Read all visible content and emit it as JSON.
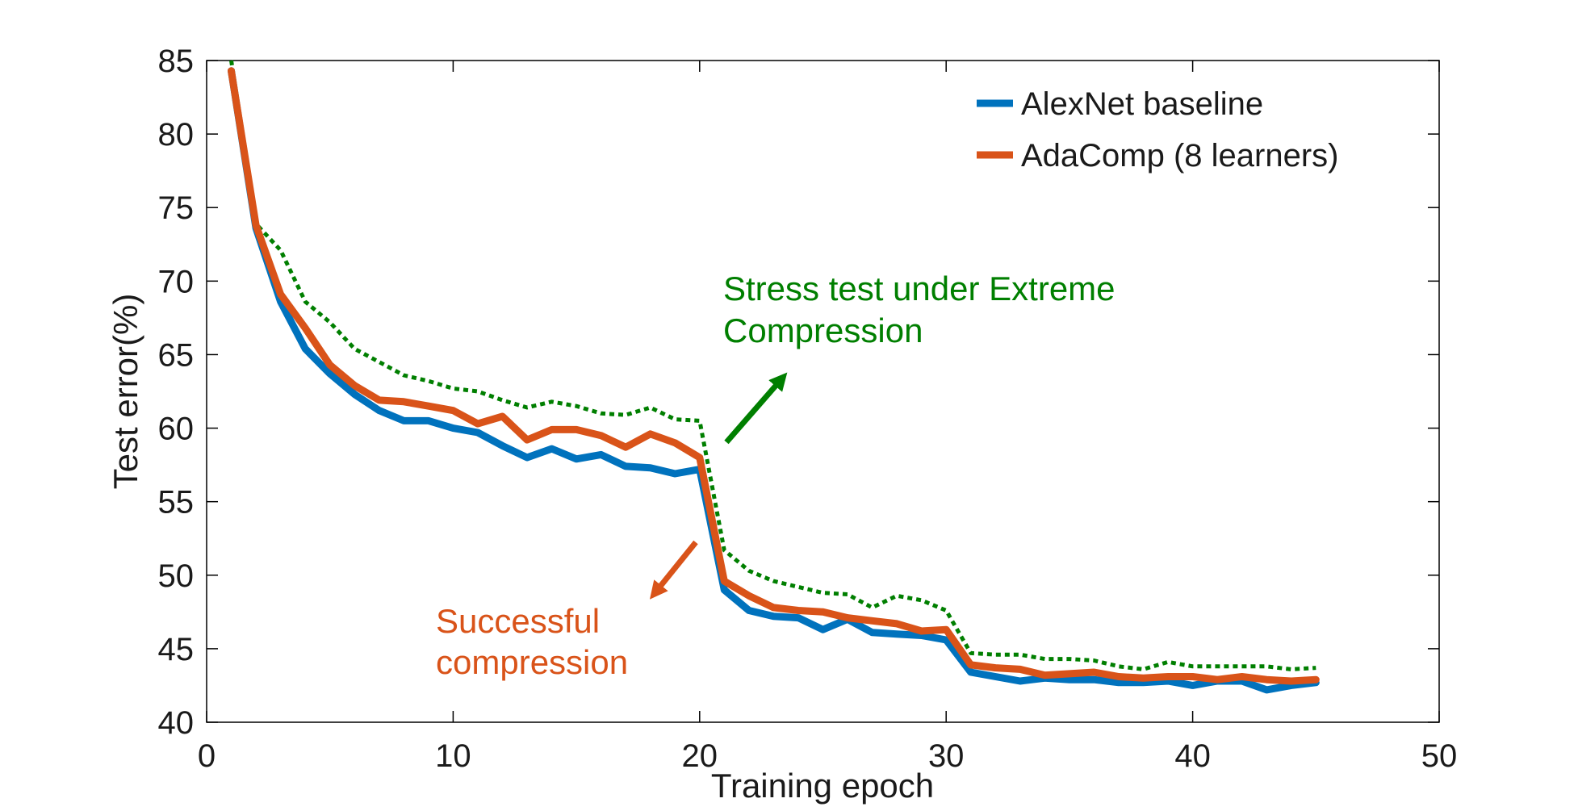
{
  "chart_data": {
    "type": "line",
    "title": "",
    "xlabel": "Training epoch",
    "ylabel": "Test error(%)",
    "xlim": [
      0,
      50
    ],
    "ylim": [
      40,
      85
    ],
    "xticks": [
      0,
      10,
      20,
      30,
      40,
      50
    ],
    "yticks": [
      40,
      45,
      50,
      55,
      60,
      65,
      70,
      75,
      80,
      85
    ],
    "grid": false,
    "legend_position": "top-right",
    "colors": {
      "baseline": "#0072bd",
      "adacomp": "#d95319",
      "stress": "#007f00",
      "axis": "#000000"
    },
    "x": [
      1,
      2,
      3,
      4,
      5,
      6,
      7,
      8,
      9,
      10,
      11,
      12,
      13,
      14,
      15,
      16,
      17,
      18,
      19,
      20,
      21,
      22,
      23,
      24,
      25,
      26,
      27,
      28,
      29,
      30,
      31,
      32,
      33,
      34,
      35,
      36,
      37,
      38,
      39,
      40,
      41,
      42,
      43,
      44,
      45
    ],
    "series": [
      {
        "name": "AlexNet baseline",
        "in_legend": true,
        "style": "solid",
        "color": "#0072bd",
        "values": [
          84.3,
          73.6,
          68.6,
          65.4,
          63.7,
          62.3,
          61.2,
          60.5,
          60.5,
          60.0,
          59.7,
          58.8,
          58.0,
          58.6,
          57.9,
          58.2,
          57.4,
          57.3,
          56.9,
          57.2,
          49.0,
          47.6,
          47.2,
          47.1,
          46.3,
          47.0,
          46.1,
          46.0,
          45.9,
          45.6,
          43.4,
          43.1,
          42.8,
          43.0,
          42.9,
          42.9,
          42.7,
          42.7,
          42.8,
          42.5,
          42.8,
          42.8,
          42.2,
          42.5,
          42.7
        ]
      },
      {
        "name": "AdaComp (8 learners)",
        "in_legend": true,
        "style": "solid",
        "color": "#d95319",
        "values": [
          84.3,
          73.8,
          69.1,
          66.8,
          64.3,
          62.9,
          61.9,
          61.8,
          61.5,
          61.2,
          60.3,
          60.8,
          59.2,
          59.9,
          59.9,
          59.5,
          58.7,
          59.6,
          59.0,
          58.0,
          49.6,
          48.6,
          47.8,
          47.6,
          47.5,
          47.1,
          46.9,
          46.7,
          46.2,
          46.3,
          43.9,
          43.7,
          43.6,
          43.2,
          43.3,
          43.4,
          43.1,
          43.0,
          43.1,
          43.1,
          42.9,
          43.1,
          42.9,
          42.8,
          42.9
        ]
      },
      {
        "name": "Stress test",
        "in_legend": false,
        "style": "dotted",
        "color": "#007f00",
        "values": [
          85.0,
          73.9,
          72.1,
          68.6,
          67.2,
          65.4,
          64.5,
          63.6,
          63.2,
          62.7,
          62.5,
          61.9,
          61.4,
          61.8,
          61.5,
          61.0,
          60.9,
          61.4,
          60.6,
          60.5,
          51.7,
          50.3,
          49.6,
          49.2,
          48.8,
          48.7,
          47.8,
          48.6,
          48.3,
          47.6,
          44.7,
          44.6,
          44.6,
          44.3,
          44.3,
          44.2,
          43.8,
          43.6,
          44.1,
          43.8,
          43.8,
          43.8,
          43.8,
          43.6,
          43.7
        ]
      }
    ],
    "annotations": [
      {
        "id": "stress",
        "lines": [
          "Stress test under Extreme",
          "Compression"
        ],
        "color": "#007f00"
      },
      {
        "id": "success",
        "lines": [
          "Successful",
          "compression"
        ],
        "color": "#d95319"
      }
    ]
  }
}
